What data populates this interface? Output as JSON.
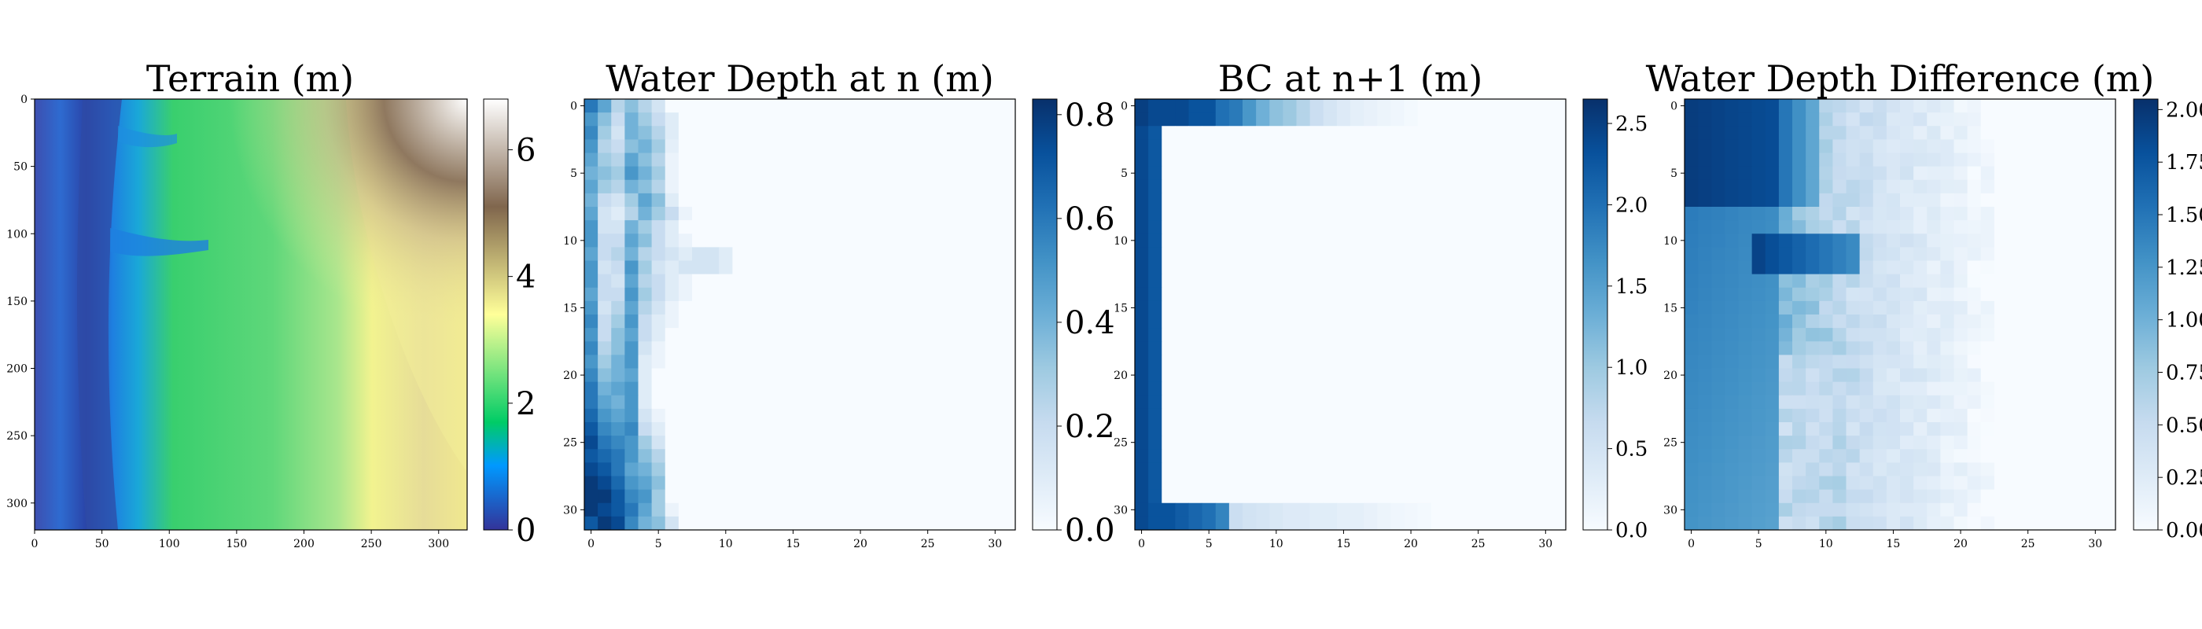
{
  "chart_data": [
    {
      "type": "heatmap",
      "title": "Terrain (m)",
      "xlabel": "",
      "ylabel": "",
      "xlim": [
        0,
        320
      ],
      "ylim": [
        320,
        0
      ],
      "x_ticks": [
        "0",
        "50",
        "100",
        "150",
        "200",
        "250",
        "300"
      ],
      "y_ticks": [
        "0",
        "50",
        "100",
        "150",
        "200",
        "250",
        "300"
      ],
      "colormap": "terrain",
      "colorbar": {
        "min": 0,
        "max": 6.8,
        "ticks": [
          "0",
          "2",
          "4",
          "6"
        ]
      },
      "features": "Dark blue channel along the left edge near x≈30–60, blue tributaries entering near y≈100–150, green floodplain around 2–3 m in the middle, yellow/brown high ground rising to ≈6.8 m in the top-right corner.",
      "colors": {
        "low": "#333399",
        "mid": "#00cc66",
        "high_yellow": "#ffff99",
        "high_brown": "#80664d",
        "peak": "#ffffff"
      }
    },
    {
      "type": "heatmap",
      "title": "Water Depth at n (m)",
      "xlabel": "",
      "ylabel": "",
      "xlim": [
        0,
        32
      ],
      "ylim": [
        32,
        0
      ],
      "x_ticks": [
        "0",
        "5",
        "10",
        "15",
        "20",
        "25",
        "30"
      ],
      "y_ticks": [
        "0",
        "5",
        "10",
        "15",
        "20",
        "25",
        "30"
      ],
      "colormap": "Blues",
      "colorbar": {
        "min": 0.0,
        "max": 0.83,
        "ticks": [
          "0.0",
          "0.2",
          "0.4",
          "0.6",
          "0.8"
        ]
      },
      "description": "Water depth concentrated in columns 0–6; deepest (≈0.8 m) at the bottom-left rows 25–31; a small lobe extending to column 10 around row 11–12; columns 7–31 are ≈0.",
      "values": [
        [
          0.6,
          0.45,
          0.25,
          0.35,
          0.25,
          0.15,
          0,
          0,
          0,
          0,
          0,
          0,
          0,
          0,
          0,
          0,
          0,
          0,
          0,
          0,
          0,
          0,
          0,
          0,
          0,
          0,
          0,
          0,
          0,
          0,
          0,
          0
        ],
        [
          0.5,
          0.35,
          0.2,
          0.4,
          0.3,
          0.2,
          0.1,
          0,
          0,
          0,
          0,
          0,
          0,
          0,
          0,
          0,
          0,
          0,
          0,
          0,
          0,
          0,
          0,
          0,
          0,
          0,
          0,
          0,
          0,
          0,
          0,
          0
        ],
        [
          0.55,
          0.3,
          0.15,
          0.4,
          0.35,
          0.25,
          0.1,
          0,
          0,
          0,
          0,
          0,
          0,
          0,
          0,
          0,
          0,
          0,
          0,
          0,
          0,
          0,
          0,
          0,
          0,
          0,
          0,
          0,
          0,
          0,
          0,
          0
        ],
        [
          0.5,
          0.25,
          0.2,
          0.35,
          0.4,
          0.3,
          0.08,
          0,
          0,
          0,
          0,
          0,
          0,
          0,
          0,
          0,
          0,
          0,
          0,
          0,
          0,
          0,
          0,
          0,
          0,
          0,
          0,
          0,
          0,
          0,
          0,
          0
        ],
        [
          0.45,
          0.3,
          0.25,
          0.45,
          0.35,
          0.25,
          0.05,
          0,
          0,
          0,
          0,
          0,
          0,
          0,
          0,
          0,
          0,
          0,
          0,
          0,
          0,
          0,
          0,
          0,
          0,
          0,
          0,
          0,
          0,
          0,
          0,
          0
        ],
        [
          0.4,
          0.35,
          0.3,
          0.5,
          0.4,
          0.3,
          0.05,
          0,
          0,
          0,
          0,
          0,
          0,
          0,
          0,
          0,
          0,
          0,
          0,
          0,
          0,
          0,
          0,
          0,
          0,
          0,
          0,
          0,
          0,
          0,
          0,
          0
        ],
        [
          0.45,
          0.3,
          0.25,
          0.4,
          0.35,
          0.25,
          0.05,
          0,
          0,
          0,
          0,
          0,
          0,
          0,
          0,
          0,
          0,
          0,
          0,
          0,
          0,
          0,
          0,
          0,
          0,
          0,
          0,
          0,
          0,
          0,
          0,
          0
        ],
        [
          0.4,
          0.2,
          0.15,
          0.3,
          0.45,
          0.35,
          0.1,
          0,
          0,
          0,
          0,
          0,
          0,
          0,
          0,
          0,
          0,
          0,
          0,
          0,
          0,
          0,
          0,
          0,
          0,
          0,
          0,
          0,
          0,
          0,
          0,
          0
        ],
        [
          0.45,
          0.15,
          0.1,
          0.25,
          0.4,
          0.3,
          0.2,
          0.05,
          0,
          0,
          0,
          0,
          0,
          0,
          0,
          0,
          0,
          0,
          0,
          0,
          0,
          0,
          0,
          0,
          0,
          0,
          0,
          0,
          0,
          0,
          0,
          0
        ],
        [
          0.5,
          0.15,
          0.15,
          0.4,
          0.3,
          0.2,
          0.1,
          0,
          0,
          0,
          0,
          0,
          0,
          0,
          0,
          0,
          0,
          0,
          0,
          0,
          0,
          0,
          0,
          0,
          0,
          0,
          0,
          0,
          0,
          0,
          0,
          0
        ],
        [
          0.5,
          0.2,
          0.2,
          0.45,
          0.35,
          0.2,
          0.1,
          0.05,
          0,
          0,
          0,
          0,
          0,
          0,
          0,
          0,
          0,
          0,
          0,
          0,
          0,
          0,
          0,
          0,
          0,
          0,
          0,
          0,
          0,
          0,
          0,
          0
        ],
        [
          0.45,
          0.2,
          0.25,
          0.4,
          0.25,
          0.2,
          0.15,
          0.1,
          0.15,
          0.15,
          0.1,
          0,
          0,
          0,
          0,
          0,
          0,
          0,
          0,
          0,
          0,
          0,
          0,
          0,
          0,
          0,
          0,
          0,
          0,
          0,
          0,
          0
        ],
        [
          0.5,
          0.15,
          0.2,
          0.5,
          0.3,
          0.15,
          0.1,
          0.15,
          0.15,
          0.15,
          0.1,
          0,
          0,
          0,
          0,
          0,
          0,
          0,
          0,
          0,
          0,
          0,
          0,
          0,
          0,
          0,
          0,
          0,
          0,
          0,
          0,
          0
        ],
        [
          0.5,
          0.2,
          0.15,
          0.45,
          0.25,
          0.2,
          0.1,
          0.05,
          0,
          0,
          0,
          0,
          0,
          0,
          0,
          0,
          0,
          0,
          0,
          0,
          0,
          0,
          0,
          0,
          0,
          0,
          0,
          0,
          0,
          0,
          0,
          0
        ],
        [
          0.45,
          0.2,
          0.2,
          0.5,
          0.3,
          0.2,
          0.1,
          0.05,
          0,
          0,
          0,
          0,
          0,
          0,
          0,
          0,
          0,
          0,
          0,
          0,
          0,
          0,
          0,
          0,
          0,
          0,
          0,
          0,
          0,
          0,
          0,
          0
        ],
        [
          0.5,
          0.15,
          0.25,
          0.45,
          0.25,
          0.15,
          0.05,
          0,
          0,
          0,
          0,
          0,
          0,
          0,
          0,
          0,
          0,
          0,
          0,
          0,
          0,
          0,
          0,
          0,
          0,
          0,
          0,
          0,
          0,
          0,
          0,
          0
        ],
        [
          0.55,
          0.2,
          0.3,
          0.5,
          0.2,
          0.1,
          0.05,
          0,
          0,
          0,
          0,
          0,
          0,
          0,
          0,
          0,
          0,
          0,
          0,
          0,
          0,
          0,
          0,
          0,
          0,
          0,
          0,
          0,
          0,
          0,
          0,
          0
        ],
        [
          0.5,
          0.2,
          0.35,
          0.45,
          0.2,
          0.1,
          0,
          0,
          0,
          0,
          0,
          0,
          0,
          0,
          0,
          0,
          0,
          0,
          0,
          0,
          0,
          0,
          0,
          0,
          0,
          0,
          0,
          0,
          0,
          0,
          0,
          0
        ],
        [
          0.55,
          0.25,
          0.35,
          0.5,
          0.15,
          0.05,
          0,
          0,
          0,
          0,
          0,
          0,
          0,
          0,
          0,
          0,
          0,
          0,
          0,
          0,
          0,
          0,
          0,
          0,
          0,
          0,
          0,
          0,
          0,
          0,
          0,
          0
        ],
        [
          0.5,
          0.3,
          0.4,
          0.5,
          0.1,
          0.05,
          0,
          0,
          0,
          0,
          0,
          0,
          0,
          0,
          0,
          0,
          0,
          0,
          0,
          0,
          0,
          0,
          0,
          0,
          0,
          0,
          0,
          0,
          0,
          0,
          0,
          0
        ],
        [
          0.55,
          0.35,
          0.4,
          0.45,
          0.1,
          0,
          0,
          0,
          0,
          0,
          0,
          0,
          0,
          0,
          0,
          0,
          0,
          0,
          0,
          0,
          0,
          0,
          0,
          0,
          0,
          0,
          0,
          0,
          0,
          0,
          0,
          0
        ],
        [
          0.6,
          0.4,
          0.45,
          0.5,
          0.1,
          0,
          0,
          0,
          0,
          0,
          0,
          0,
          0,
          0,
          0,
          0,
          0,
          0,
          0,
          0,
          0,
          0,
          0,
          0,
          0,
          0,
          0,
          0,
          0,
          0,
          0,
          0
        ],
        [
          0.6,
          0.45,
          0.4,
          0.5,
          0.1,
          0,
          0,
          0,
          0,
          0,
          0,
          0,
          0,
          0,
          0,
          0,
          0,
          0,
          0,
          0,
          0,
          0,
          0,
          0,
          0,
          0,
          0,
          0,
          0,
          0,
          0,
          0
        ],
        [
          0.65,
          0.5,
          0.45,
          0.5,
          0.15,
          0.05,
          0,
          0,
          0,
          0,
          0,
          0,
          0,
          0,
          0,
          0,
          0,
          0,
          0,
          0,
          0,
          0,
          0,
          0,
          0,
          0,
          0,
          0,
          0,
          0,
          0,
          0
        ],
        [
          0.7,
          0.55,
          0.5,
          0.55,
          0.2,
          0.1,
          0,
          0,
          0,
          0,
          0,
          0,
          0,
          0,
          0,
          0,
          0,
          0,
          0,
          0,
          0,
          0,
          0,
          0,
          0,
          0,
          0,
          0,
          0,
          0,
          0,
          0
        ],
        [
          0.75,
          0.6,
          0.55,
          0.5,
          0.3,
          0.15,
          0,
          0,
          0,
          0,
          0,
          0,
          0,
          0,
          0,
          0,
          0,
          0,
          0,
          0,
          0,
          0,
          0,
          0,
          0,
          0,
          0,
          0,
          0,
          0,
          0,
          0
        ],
        [
          0.7,
          0.65,
          0.6,
          0.5,
          0.35,
          0.25,
          0,
          0,
          0,
          0,
          0,
          0,
          0,
          0,
          0,
          0,
          0,
          0,
          0,
          0,
          0,
          0,
          0,
          0,
          0,
          0,
          0,
          0,
          0,
          0,
          0,
          0
        ],
        [
          0.75,
          0.7,
          0.6,
          0.45,
          0.4,
          0.3,
          0,
          0,
          0,
          0,
          0,
          0,
          0,
          0,
          0,
          0,
          0,
          0,
          0,
          0,
          0,
          0,
          0,
          0,
          0,
          0,
          0,
          0,
          0,
          0,
          0,
          0
        ],
        [
          0.8,
          0.75,
          0.65,
          0.5,
          0.45,
          0.35,
          0,
          0,
          0,
          0,
          0,
          0,
          0,
          0,
          0,
          0,
          0,
          0,
          0,
          0,
          0,
          0,
          0,
          0,
          0,
          0,
          0,
          0,
          0,
          0,
          0,
          0
        ],
        [
          0.8,
          0.8,
          0.7,
          0.55,
          0.5,
          0.3,
          0,
          0,
          0,
          0,
          0,
          0,
          0,
          0,
          0,
          0,
          0,
          0,
          0,
          0,
          0,
          0,
          0,
          0,
          0,
          0,
          0,
          0,
          0,
          0,
          0,
          0
        ],
        [
          0.8,
          0.75,
          0.7,
          0.6,
          0.45,
          0.3,
          0.05,
          0,
          0,
          0,
          0,
          0,
          0,
          0,
          0,
          0,
          0,
          0,
          0,
          0,
          0,
          0,
          0,
          0,
          0,
          0,
          0,
          0,
          0,
          0,
          0,
          0
        ],
        [
          0.7,
          0.8,
          0.75,
          0.55,
          0.4,
          0.35,
          0.15,
          0,
          0,
          0,
          0,
          0,
          0,
          0,
          0,
          0,
          0,
          0,
          0,
          0,
          0,
          0,
          0,
          0,
          0,
          0,
          0,
          0,
          0,
          0,
          0,
          0
        ]
      ]
    },
    {
      "type": "heatmap",
      "title": "BC at n+1 (m)",
      "xlabel": "",
      "ylabel": "",
      "xlim": [
        0,
        32
      ],
      "ylim": [
        32,
        0
      ],
      "x_ticks": [
        "0",
        "5",
        "10",
        "15",
        "20",
        "25",
        "30"
      ],
      "y_ticks": [
        "0",
        "5",
        "10",
        "15",
        "20",
        "25",
        "30"
      ],
      "colormap": "Blues",
      "colorbar": {
        "min": 0.0,
        "max": 2.65,
        "ticks": [
          "0.0",
          "0.5",
          "1.0",
          "1.5",
          "2.0",
          "2.5"
        ]
      },
      "description": "Boundary conditions only: top rows 0–1 decay from ≈2.4 m at left to 0 by column ~20; left columns 0–1 ≈2.3–2.5 m down the full height; bottom rows 30–31 decay from ≈2.3 m at left to 0 by column ~22; interior is 0.",
      "top_boundary": [
        2.5,
        2.4,
        2.4,
        2.4,
        2.3,
        2.3,
        2.0,
        1.9,
        1.6,
        1.3,
        1.1,
        1.0,
        0.8,
        0.6,
        0.45,
        0.35,
        0.25,
        0.2,
        0.15,
        0.1,
        0.05,
        0,
        0,
        0,
        0,
        0,
        0,
        0,
        0,
        0,
        0,
        0
      ],
      "left_boundary": [
        2.5,
        2.5,
        2.4,
        2.4,
        2.4,
        2.4,
        2.4,
        2.4,
        2.4,
        2.4,
        2.4,
        2.4,
        2.4,
        2.4,
        2.4,
        2.4,
        2.4,
        2.4,
        2.4,
        2.4,
        2.4,
        2.4,
        2.4,
        2.4,
        2.4,
        2.4,
        2.4,
        2.4,
        2.4,
        2.4,
        2.4,
        2.4
      ],
      "bottom_boundary": [
        2.4,
        2.3,
        2.3,
        2.2,
        2.1,
        2.0,
        1.8,
        0.6,
        0.5,
        0.45,
        0.4,
        0.35,
        0.35,
        0.3,
        0.3,
        0.25,
        0.25,
        0.2,
        0.15,
        0.1,
        0.08,
        0.05,
        0,
        0,
        0,
        0,
        0,
        0,
        0,
        0,
        0,
        0
      ]
    },
    {
      "type": "heatmap",
      "title": "Water Depth Difference (m)",
      "xlabel": "",
      "ylabel": "",
      "xlim": [
        0,
        32
      ],
      "ylim": [
        32,
        0
      ],
      "x_ticks": [
        "0",
        "5",
        "10",
        "15",
        "20",
        "25",
        "30"
      ],
      "y_ticks": [
        "0",
        "5",
        "10",
        "15",
        "20",
        "25",
        "30"
      ],
      "colormap": "Blues",
      "colorbar": {
        "min": 0.0,
        "max": 2.05,
        "ticks": [
          "0.00",
          "0.25",
          "0.50",
          "0.75",
          "1.00",
          "1.25",
          "1.50",
          "1.75",
          "2.00"
        ]
      },
      "description": "Difference largest (≈2.0 m) in columns 0–7 at the top, ≈1.3–1.5 m in columns 0–6 lower down; a band of 0.4–1.0 m at columns 7–13; decays to ≈0.1 m by columns 18–23; 0 beyond column ~23. Strong lobe of ≈1.9 m at rows 10–12 extending to column 12."
    }
  ]
}
